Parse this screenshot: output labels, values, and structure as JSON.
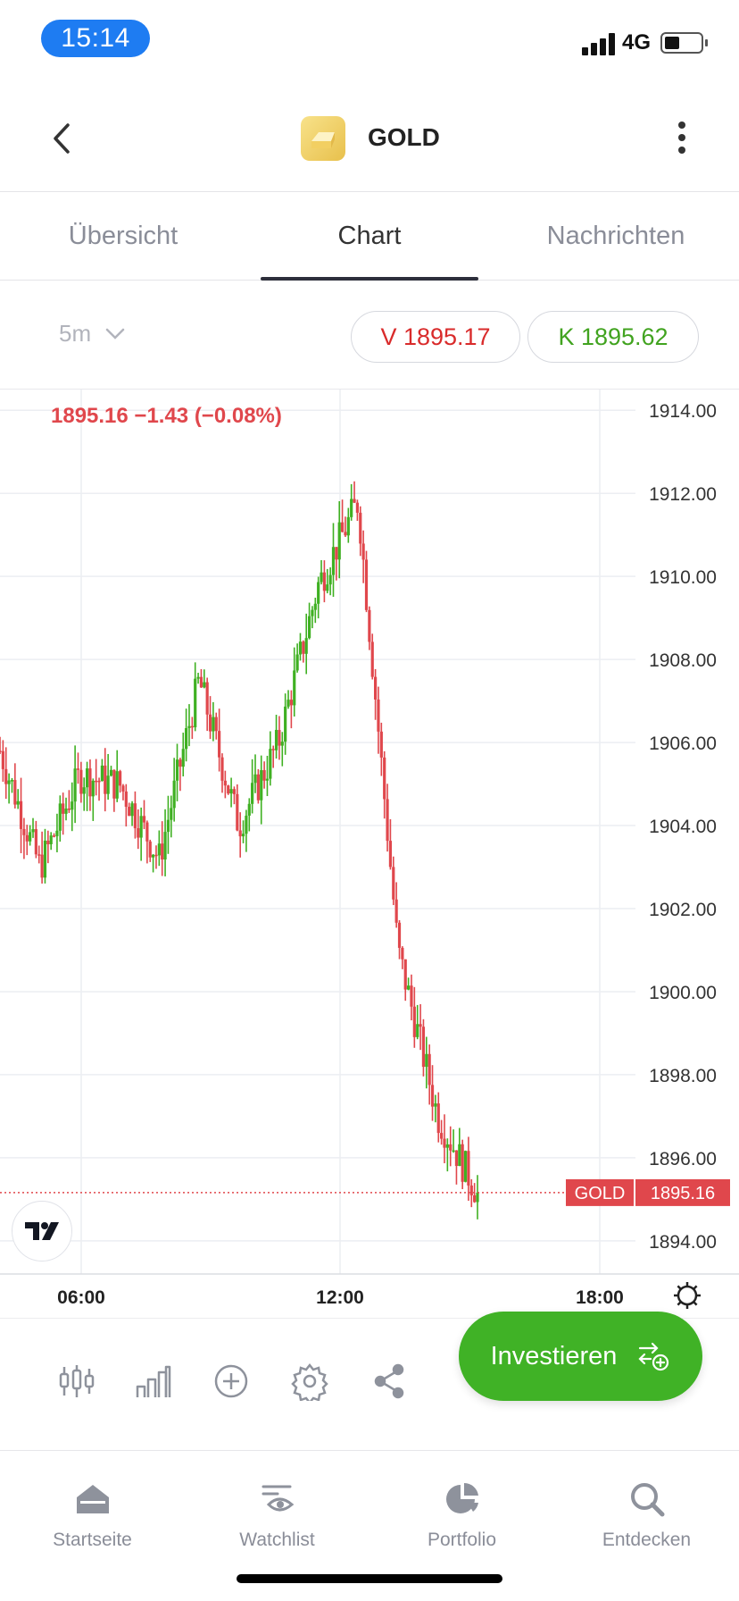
{
  "status_bar": {
    "time": "15:14",
    "network": "4G"
  },
  "header": {
    "title": "GOLD"
  },
  "tabs": [
    {
      "label": "Übersicht",
      "active": false
    },
    {
      "label": "Chart",
      "active": true
    },
    {
      "label": "Nachrichten",
      "active": false
    }
  ],
  "toolbar": {
    "interval": "5m",
    "sell": "V 1895.17",
    "buy": "K 1895.62"
  },
  "quote": "1895.16  −1.43 (−0.08%)",
  "chart_data": {
    "type": "candlestick",
    "instrument": "GOLD",
    "interval": "5m",
    "y_ticks": [
      "1914.00",
      "1912.00",
      "1910.00",
      "1908.00",
      "1906.00",
      "1904.00",
      "1902.00",
      "1900.00",
      "1898.00",
      "1896.00",
      "1894.00"
    ],
    "ylim": [
      1893.2,
      1914.5
    ],
    "x_ticks": [
      "06:00",
      "12:00",
      "18:00"
    ],
    "last_price_label": "1895.16",
    "last_price_tag": "GOLD",
    "last": 1895.16,
    "series_close_approx": [
      {
        "time": "~03:50",
        "price": 1905.8
      },
      {
        "time": "~05:00",
        "price": 1903.0
      },
      {
        "time": "~06:00",
        "price": 1905.2
      },
      {
        "time": "~07:30",
        "price": 1905.0
      },
      {
        "time": "~09:00",
        "price": 1903.2
      },
      {
        "time": "~10:00",
        "price": 1907.5
      },
      {
        "time": "~11:00",
        "price": 1904.0
      },
      {
        "time": "~12:00",
        "price": 1906.0
      },
      {
        "time": "~13:00",
        "price": 1909.8
      },
      {
        "time": "~14:10",
        "price": 1911.8
      },
      {
        "time": "~14:20",
        "price": 1901.0
      },
      {
        "time": "~14:40",
        "price": 1897.0
      },
      {
        "time": "~15:10",
        "price": 1895.16
      }
    ],
    "colors": {
      "up": "#3fb022",
      "down": "#e0474c",
      "grid": "#eceef2"
    }
  },
  "bottom_tools": {
    "icons": [
      "candles-icon",
      "bars-icon",
      "add-indicator-icon",
      "settings-icon",
      "share-icon"
    ],
    "invest_label": "Investieren"
  },
  "nav": [
    {
      "label": "Startseite",
      "icon": "home-icon"
    },
    {
      "label": "Watchlist",
      "icon": "watchlist-icon"
    },
    {
      "label": "Portfolio",
      "icon": "portfolio-icon"
    },
    {
      "label": "Entdecken",
      "icon": "search-icon"
    }
  ]
}
